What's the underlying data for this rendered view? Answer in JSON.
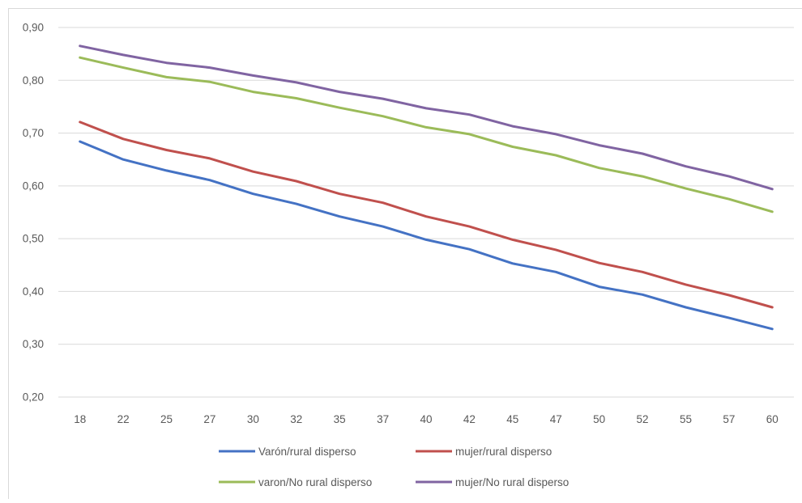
{
  "chart_data": {
    "type": "line",
    "title": "",
    "xlabel": "",
    "ylabel": "",
    "categories": [
      "18",
      "22",
      "25",
      "27",
      "30",
      "32",
      "35",
      "37",
      "40",
      "42",
      "45",
      "47",
      "50",
      "52",
      "55",
      "57",
      "60"
    ],
    "ylim": [
      0.2,
      0.9
    ],
    "yticks": [
      "0,20",
      "0,30",
      "0,40",
      "0,50",
      "0,60",
      "0,70",
      "0,80",
      "0,90"
    ],
    "grid": "horizontal",
    "legend_position": "bottom",
    "series": [
      {
        "name": "Varón/rural disperso",
        "color": "#4472c4",
        "values": [
          0.684,
          0.65,
          0.629,
          0.611,
          0.585,
          0.566,
          0.542,
          0.523,
          0.498,
          0.48,
          0.453,
          0.437,
          0.409,
          0.394,
          0.37,
          0.35,
          0.329
        ]
      },
      {
        "name": "mujer/rural disperso",
        "color": "#c0504d",
        "values": [
          0.721,
          0.689,
          0.668,
          0.652,
          0.627,
          0.609,
          0.585,
          0.568,
          0.542,
          0.523,
          0.498,
          0.479,
          0.454,
          0.437,
          0.413,
          0.393,
          0.37
        ]
      },
      {
        "name": "varon/No rural disperso",
        "color": "#9bbb59",
        "values": [
          0.843,
          0.824,
          0.806,
          0.797,
          0.778,
          0.766,
          0.748,
          0.732,
          0.711,
          0.698,
          0.674,
          0.658,
          0.634,
          0.618,
          0.595,
          0.575,
          0.551
        ]
      },
      {
        "name": "mujer/No rural disperso",
        "color": "#8064a2",
        "values": [
          0.865,
          0.848,
          0.833,
          0.824,
          0.809,
          0.796,
          0.778,
          0.765,
          0.747,
          0.735,
          0.713,
          0.698,
          0.677,
          0.661,
          0.637,
          0.618,
          0.594
        ]
      }
    ]
  }
}
